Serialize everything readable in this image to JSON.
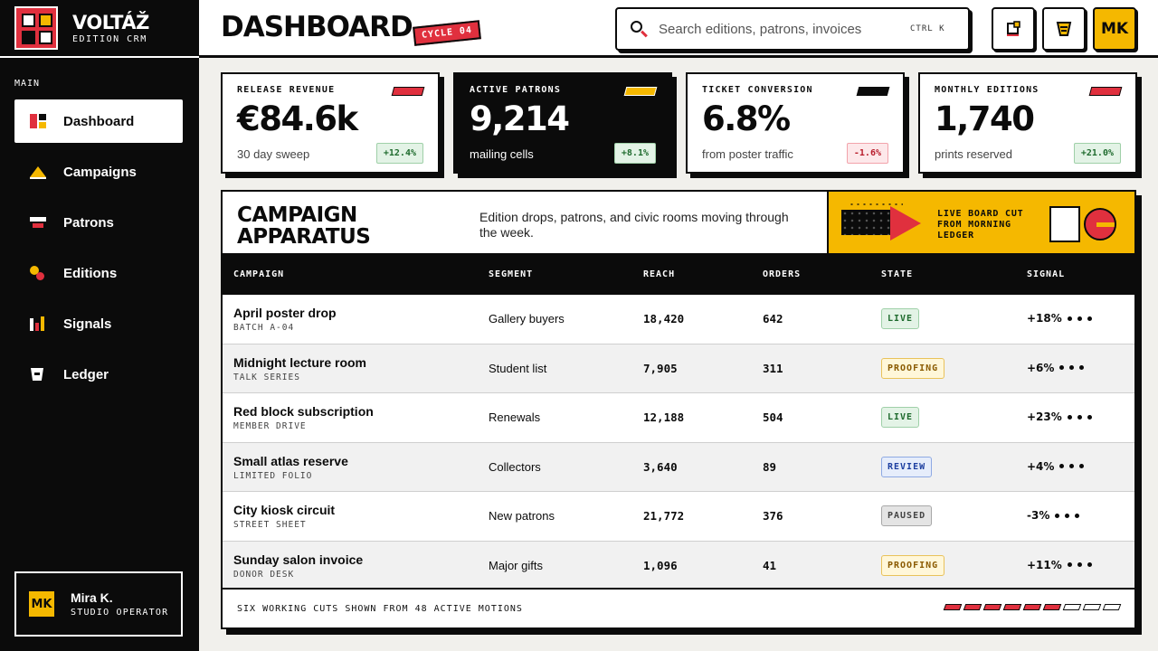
{
  "brand": {
    "name": "VOLTÁŽ",
    "sub": "EDITION CRM"
  },
  "nav_section": "MAIN",
  "nav": [
    {
      "label": "Dashboard",
      "icon": "dashboard-icon"
    },
    {
      "label": "Campaigns",
      "icon": "campaign-icon"
    },
    {
      "label": "Patrons",
      "icon": "patrons-icon"
    },
    {
      "label": "Editions",
      "icon": "editions-icon"
    },
    {
      "label": "Signals",
      "icon": "signals-icon"
    },
    {
      "label": "Ledger",
      "icon": "ledger-icon"
    }
  ],
  "user": {
    "initials": "MK",
    "name": "Mira K.",
    "role": "STUDIO OPERATOR"
  },
  "header": {
    "title": "DASHBOARD",
    "badge": "CYCLE 04",
    "search_placeholder": "Search editions, patrons, invoices",
    "shortcut": "CTRL K",
    "profile_initials": "MK"
  },
  "kpis": [
    {
      "label": "RELEASE REVENUE",
      "value": "€84.6k",
      "sub": "30 day sweep",
      "delta": "+12.4%",
      "flag_color": "#e0303e"
    },
    {
      "label": "ACTIVE PATRONS",
      "value": "9,214",
      "sub": "mailing cells",
      "delta": "+8.1%",
      "flag_color": "#f5b800"
    },
    {
      "label": "TICKET CONVERSION",
      "value": "6.8%",
      "sub": "from poster traffic",
      "delta": "-1.6%",
      "flag_color": "#0b0b0b"
    },
    {
      "label": "MONTHLY EDITIONS",
      "value": "1,740",
      "sub": "prints reserved",
      "delta": "+21.0%",
      "flag_color": "#e0303e"
    }
  ],
  "panel": {
    "title_line1": "CAMPAIGN",
    "title_line2": "APPARATUS",
    "description": "Edition drops, patrons, and civic rooms moving through the week.",
    "promo_line1": "LIVE BOARD CUT",
    "promo_line2": "FROM MORNING",
    "promo_line3": "LEDGER"
  },
  "table": {
    "columns": [
      "CAMPAIGN",
      "SEGMENT",
      "REACH",
      "ORDERS",
      "STATE",
      "SIGNAL"
    ],
    "rows": [
      {
        "name": "April poster drop",
        "sub": "BATCH A-04",
        "segment": "Gallery buyers",
        "reach": "18,420",
        "orders": "642",
        "state": "LIVE",
        "signal": "+18%"
      },
      {
        "name": "Midnight lecture room",
        "sub": "TALK SERIES",
        "segment": "Student list",
        "reach": "7,905",
        "orders": "311",
        "state": "PROOFING",
        "signal": "+6%"
      },
      {
        "name": "Red block subscription",
        "sub": "MEMBER DRIVE",
        "segment": "Renewals",
        "reach": "12,188",
        "orders": "504",
        "state": "LIVE",
        "signal": "+23%"
      },
      {
        "name": "Small atlas reserve",
        "sub": "LIMITED FOLIO",
        "segment": "Collectors",
        "reach": "3,640",
        "orders": "89",
        "state": "REVIEW",
        "signal": "+4%"
      },
      {
        "name": "City kiosk circuit",
        "sub": "STREET SHEET",
        "segment": "New patrons",
        "reach": "21,772",
        "orders": "376",
        "state": "PAUSED",
        "signal": "-3%"
      },
      {
        "name": "Sunday salon invoice",
        "sub": "DONOR DESK",
        "segment": "Major gifts",
        "reach": "1,096",
        "orders": "41",
        "state": "PROOFING",
        "signal": "+11%"
      }
    ]
  },
  "footer": {
    "text": "SIX WORKING CUTS SHOWN FROM 48 ACTIVE MOTIONS",
    "pager_total": 9,
    "pager_filled": 6
  },
  "colors": {
    "red": "#e0303e",
    "yellow": "#f5b800",
    "black": "#0b0b0b"
  }
}
